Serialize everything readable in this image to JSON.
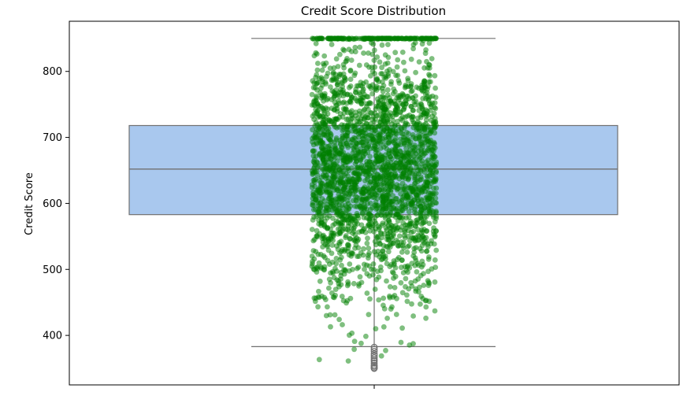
{
  "chart_data": {
    "type": "box",
    "title": "Credit Score Distribution",
    "xlabel": "",
    "ylabel": "Credit Score",
    "ylim": [
      325,
      876
    ],
    "yticks": [
      400,
      500,
      600,
      700,
      800
    ],
    "grid": false,
    "legend": "none",
    "box": {
      "whisker_low": 383,
      "q1": 583,
      "median": 652,
      "q3": 718,
      "whisker_high": 850,
      "outliers": [
        350,
        351,
        353,
        355,
        358,
        361,
        363,
        366,
        369,
        372,
        376,
        379,
        382
      ],
      "fill_color": "#a9c8ee",
      "edge_color": "#707070"
    },
    "strip": {
      "color": "#008000",
      "min": 350,
      "max": 850,
      "median": 652
    }
  }
}
